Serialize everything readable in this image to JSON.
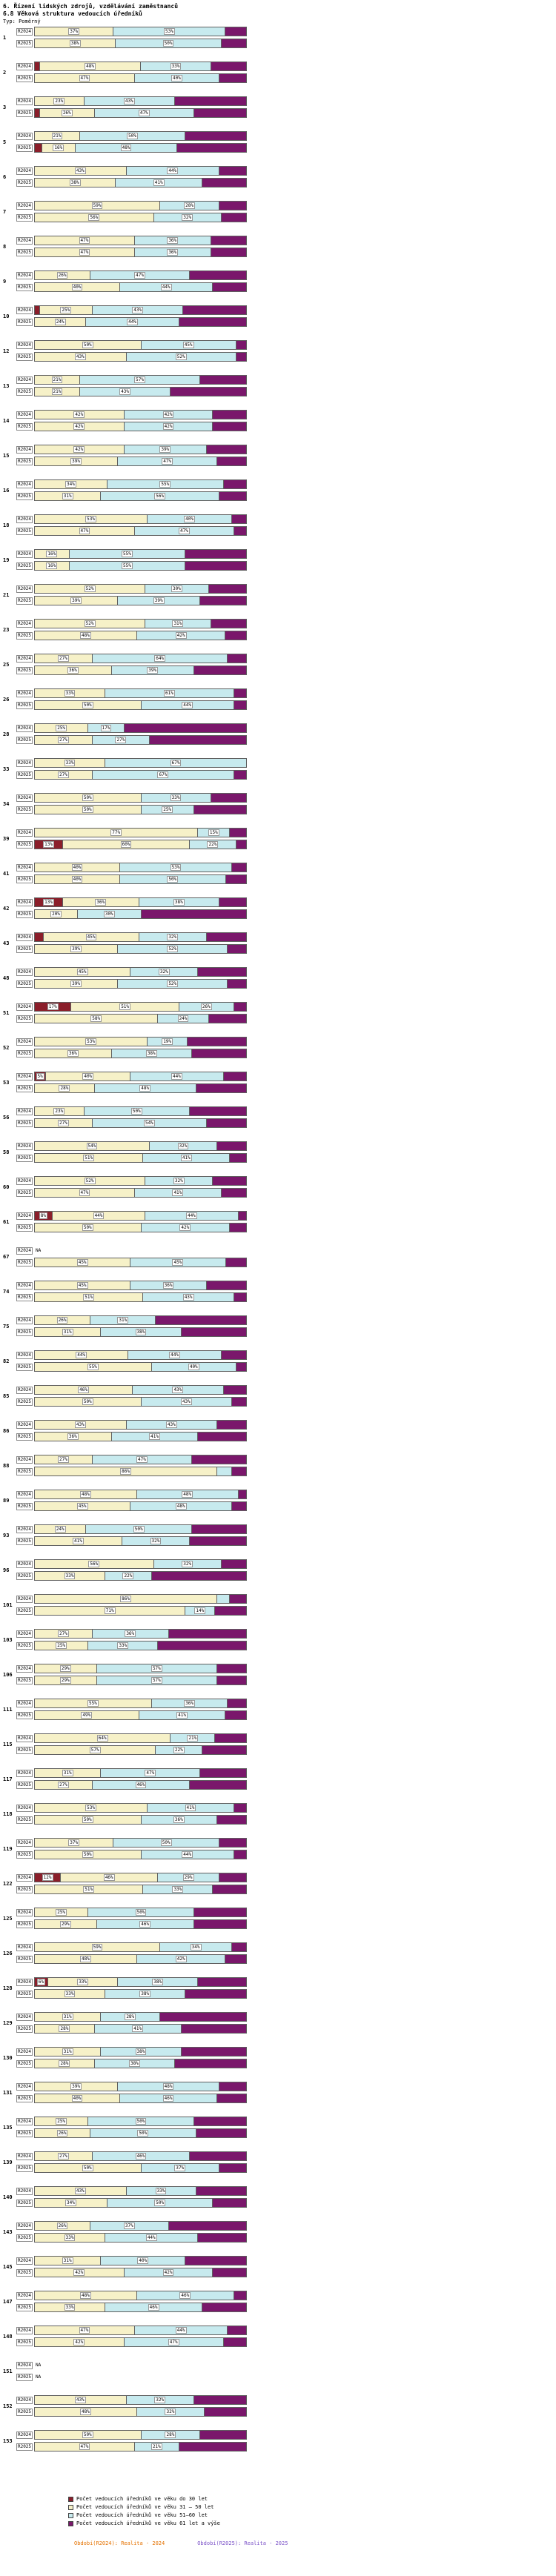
{
  "title": "6. Řízení lidských zdrojů, vzdělávání zaměstnanců",
  "subtitle": "6.8 Věková struktura vedoucích úředníků",
  "type_label": "Typ: Poměrný",
  "row_labels": {
    "r2024": "R2024",
    "r2025": "R2025",
    "na": "NA"
  },
  "colors": {
    "age_under30": "#8B1E2A",
    "age_31_50": "#F6F1C8",
    "age_51_60": "#C7EAEE",
    "age_61_plus": "#7A176B",
    "period_2024_text": "#E57200",
    "period_2025_text": "#7B52C8"
  },
  "legend": {
    "items": [
      {
        "label": "Počet vedoucích úředníků ve věku do 30 let",
        "color_key": "age_under30"
      },
      {
        "label": "Počet vedoucích úředníků ve věku 31 – 50 let",
        "color_key": "age_31_50"
      },
      {
        "label": "Počet vedoucích úředníků ve věku 51–60 let",
        "color_key": "age_51_60"
      },
      {
        "label": "Počet vedoucích úředníků ve věku 61 let a výše",
        "color_key": "age_61_plus"
      }
    ]
  },
  "periods": {
    "p2024": "Období(R2024): Realita - 2024",
    "p2025": "Období(R2025): Realita - 2025"
  },
  "chart_data": {
    "type": "bar",
    "stacked": true,
    "orientation": "horizontal",
    "unit": "%",
    "xlim": [
      0,
      100
    ],
    "series_keys": [
      "do 30 let",
      "31 – 50 let",
      "51–60 let",
      "61 let a výše"
    ],
    "groups": [
      {
        "id": 1,
        "R2024": [
          0,
          37,
          53,
          10
        ],
        "R2025": [
          0,
          38,
          50,
          12
        ]
      },
      {
        "id": 2,
        "R2024": [
          2,
          48,
          33,
          17
        ],
        "R2025": [
          0,
          47,
          40,
          13
        ]
      },
      {
        "id": 3,
        "R2024": [
          0,
          23,
          43,
          34
        ],
        "R2025": [
          2,
          26,
          47,
          25
        ]
      },
      {
        "id": 5,
        "R2024": [
          0,
          21,
          50,
          29
        ],
        "R2025": [
          3,
          16,
          48,
          33
        ]
      },
      {
        "id": 6,
        "R2024": [
          0,
          43,
          44,
          13
        ],
        "R2025": [
          0,
          38,
          41,
          21
        ]
      },
      {
        "id": 7,
        "R2024": [
          0,
          59,
          28,
          13
        ],
        "R2025": [
          0,
          56,
          32,
          12
        ]
      },
      {
        "id": 8,
        "R2024": [
          0,
          47,
          36,
          17
        ],
        "R2025": [
          0,
          47,
          36,
          17
        ]
      },
      {
        "id": 9,
        "R2024": [
          0,
          26,
          47,
          27
        ],
        "R2025": [
          0,
          40,
          44,
          16
        ]
      },
      {
        "id": 10,
        "R2024": [
          2,
          25,
          43,
          30
        ],
        "R2025": [
          0,
          24,
          44,
          32
        ]
      },
      {
        "id": 12,
        "R2024": [
          0,
          50,
          45,
          5
        ],
        "R2025": [
          0,
          43,
          52,
          5
        ]
      },
      {
        "id": 13,
        "R2024": [
          0,
          21,
          57,
          22
        ],
        "R2025": [
          0,
          21,
          43,
          36
        ]
      },
      {
        "id": 14,
        "R2024": [
          0,
          42,
          42,
          16
        ],
        "R2025": [
          0,
          42,
          42,
          16
        ]
      },
      {
        "id": 15,
        "R2024": [
          0,
          42,
          39,
          19
        ],
        "R2025": [
          0,
          39,
          47,
          14
        ]
      },
      {
        "id": 16,
        "R2024": [
          0,
          34,
          55,
          11
        ],
        "R2025": [
          0,
          31,
          56,
          13
        ]
      },
      {
        "id": 18,
        "R2024": [
          0,
          53,
          40,
          7
        ],
        "R2025": [
          0,
          47,
          47,
          6
        ]
      },
      {
        "id": 19,
        "R2024": [
          0,
          16,
          55,
          29
        ],
        "R2025": [
          0,
          16,
          55,
          29
        ]
      },
      {
        "id": 21,
        "R2024": [
          0,
          52,
          30,
          18
        ],
        "R2025": [
          0,
          39,
          39,
          22
        ]
      },
      {
        "id": 23,
        "R2024": [
          0,
          52,
          31,
          17
        ],
        "R2025": [
          0,
          48,
          42,
          10
        ]
      },
      {
        "id": 25,
        "R2024": [
          0,
          27,
          64,
          9
        ],
        "R2025": [
          0,
          36,
          39,
          25
        ]
      },
      {
        "id": 26,
        "R2024": [
          0,
          33,
          61,
          6
        ],
        "R2025": [
          0,
          50,
          44,
          6
        ]
      },
      {
        "id": 28,
        "R2024": [
          0,
          25,
          17,
          58
        ],
        "R2025": [
          0,
          27,
          27,
          46
        ]
      },
      {
        "id": 33,
        "R2024": [
          0,
          33,
          67,
          0
        ],
        "R2025": [
          0,
          27,
          67,
          6
        ]
      },
      {
        "id": 34,
        "R2024": [
          0,
          50,
          33,
          17
        ],
        "R2025": [
          0,
          50,
          25,
          25
        ]
      },
      {
        "id": 39,
        "R2024": [
          0,
          77,
          15,
          8
        ],
        "R2025": [
          13,
          60,
          22,
          5
        ]
      },
      {
        "id": 41,
        "R2024": [
          0,
          40,
          53,
          7
        ],
        "R2025": [
          0,
          40,
          50,
          10
        ]
      },
      {
        "id": 42,
        "R2024": [
          13,
          36,
          38,
          13
        ],
        "R2025": [
          0,
          20,
          30,
          50
        ]
      },
      {
        "id": 43,
        "R2024": [
          4,
          45,
          32,
          19
        ],
        "R2025": [
          0,
          39,
          52,
          9
        ]
      },
      {
        "id": 48,
        "R2024": [
          0,
          45,
          32,
          23
        ],
        "R2025": [
          0,
          39,
          52,
          9
        ]
      },
      {
        "id": 51,
        "R2024": [
          17,
          51,
          26,
          6
        ],
        "R2025": [
          0,
          58,
          24,
          18
        ]
      },
      {
        "id": 52,
        "R2024": [
          0,
          53,
          19,
          28
        ],
        "R2025": [
          0,
          36,
          38,
          26
        ]
      },
      {
        "id": 53,
        "R2024": [
          5,
          40,
          44,
          11
        ],
        "R2025": [
          0,
          28,
          48,
          24
        ]
      },
      {
        "id": 56,
        "R2024": [
          0,
          23,
          50,
          27
        ],
        "R2025": [
          0,
          27,
          54,
          19
        ]
      },
      {
        "id": 58,
        "R2024": [
          0,
          54,
          32,
          14
        ],
        "R2025": [
          0,
          51,
          41,
          8
        ]
      },
      {
        "id": 60,
        "R2024": [
          0,
          52,
          32,
          16
        ],
        "R2025": [
          0,
          47,
          41,
          12
        ]
      },
      {
        "id": 61,
        "R2024": [
          8,
          44,
          44,
          4
        ],
        "R2025": [
          0,
          50,
          42,
          8
        ]
      },
      {
        "id": 67,
        "R2024": null,
        "R2025": [
          0,
          45,
          45,
          10
        ]
      },
      {
        "id": 74,
        "R2024": [
          0,
          45,
          36,
          19
        ],
        "R2025": [
          0,
          51,
          43,
          6
        ]
      },
      {
        "id": 75,
        "R2024": [
          0,
          26,
          31,
          43
        ],
        "R2025": [
          0,
          31,
          38,
          31
        ]
      },
      {
        "id": 82,
        "R2024": [
          0,
          44,
          44,
          12
        ],
        "R2025": [
          0,
          55,
          40,
          5
        ]
      },
      {
        "id": 85,
        "R2024": [
          0,
          46,
          43,
          11
        ],
        "R2025": [
          0,
          50,
          43,
          7
        ]
      },
      {
        "id": 86,
        "R2024": [
          0,
          43,
          43,
          14
        ],
        "R2025": [
          0,
          36,
          41,
          23
        ]
      },
      {
        "id": 88,
        "R2024": [
          0,
          27,
          47,
          26
        ],
        "R2025": [
          0,
          86,
          7,
          7
        ]
      },
      {
        "id": 89,
        "R2024": [
          0,
          48,
          48,
          4
        ],
        "R2025": [
          0,
          45,
          48,
          7
        ]
      },
      {
        "id": 93,
        "R2024": [
          0,
          24,
          50,
          26
        ],
        "R2025": [
          0,
          41,
          32,
          27
        ]
      },
      {
        "id": 96,
        "R2024": [
          0,
          56,
          32,
          12
        ],
        "R2025": [
          0,
          33,
          22,
          45
        ]
      },
      {
        "id": 101,
        "R2024": [
          0,
          86,
          6,
          8
        ],
        "R2025": [
          0,
          71,
          14,
          15
        ]
      },
      {
        "id": 103,
        "R2024": [
          0,
          27,
          36,
          37
        ],
        "R2025": [
          0,
          25,
          33,
          42
        ]
      },
      {
        "id": 106,
        "R2024": [
          0,
          29,
          57,
          14
        ],
        "R2025": [
          0,
          29,
          57,
          14
        ]
      },
      {
        "id": 111,
        "R2024": [
          0,
          55,
          36,
          9
        ],
        "R2025": [
          0,
          49,
          41,
          10
        ]
      },
      {
        "id": 115,
        "R2024": [
          0,
          64,
          21,
          15
        ],
        "R2025": [
          0,
          57,
          22,
          21
        ]
      },
      {
        "id": 117,
        "R2024": [
          0,
          31,
          47,
          22
        ],
        "R2025": [
          0,
          27,
          46,
          27
        ]
      },
      {
        "id": 118,
        "R2024": [
          0,
          53,
          41,
          6
        ],
        "R2025": [
          0,
          50,
          36,
          14
        ]
      },
      {
        "id": 119,
        "R2024": [
          0,
          37,
          50,
          13
        ],
        "R2025": [
          0,
          50,
          44,
          6
        ]
      },
      {
        "id": 122,
        "R2024": [
          12,
          46,
          29,
          13
        ],
        "R2025": [
          0,
          51,
          33,
          16
        ]
      },
      {
        "id": 125,
        "R2024": [
          0,
          25,
          50,
          25
        ],
        "R2025": [
          0,
          29,
          46,
          25
        ]
      },
      {
        "id": 126,
        "R2024": [
          0,
          59,
          34,
          7
        ],
        "R2025": [
          0,
          48,
          42,
          10
        ]
      },
      {
        "id": 128,
        "R2024": [
          6,
          33,
          38,
          23
        ],
        "R2025": [
          0,
          33,
          38,
          29
        ]
      },
      {
        "id": 129,
        "R2024": [
          0,
          31,
          28,
          41
        ],
        "R2025": [
          0,
          28,
          41,
          31
        ]
      },
      {
        "id": 130,
        "R2024": [
          0,
          31,
          38,
          31
        ],
        "R2025": [
          0,
          28,
          38,
          34
        ]
      },
      {
        "id": 131,
        "R2024": [
          0,
          39,
          48,
          13
        ],
        "R2025": [
          0,
          40,
          46,
          14
        ]
      },
      {
        "id": 135,
        "R2024": [
          0,
          25,
          50,
          25
        ],
        "R2025": [
          0,
          26,
          50,
          24
        ]
      },
      {
        "id": 139,
        "R2024": [
          0,
          27,
          46,
          27
        ],
        "R2025": [
          0,
          50,
          37,
          13
        ]
      },
      {
        "id": 140,
        "R2024": [
          0,
          43,
          33,
          24
        ],
        "R2025": [
          0,
          34,
          50,
          16
        ]
      },
      {
        "id": 143,
        "R2024": [
          0,
          26,
          37,
          37
        ],
        "R2025": [
          0,
          33,
          44,
          23
        ]
      },
      {
        "id": 145,
        "R2024": [
          0,
          31,
          40,
          29
        ],
        "R2025": [
          0,
          42,
          42,
          16
        ]
      },
      {
        "id": 147,
        "R2024": [
          0,
          48,
          46,
          6
        ],
        "R2025": [
          0,
          33,
          46,
          21
        ]
      },
      {
        "id": 148,
        "R2024": [
          0,
          47,
          44,
          9
        ],
        "R2025": [
          0,
          42,
          47,
          11
        ]
      },
      {
        "id": 151,
        "R2024": null,
        "R2025": null
      },
      {
        "id": 152,
        "R2024": [
          0,
          43,
          32,
          25
        ],
        "R2025": [
          0,
          48,
          32,
          20
        ]
      },
      {
        "id": 153,
        "R2024": [
          0,
          50,
          28,
          22
        ],
        "R2025": [
          0,
          47,
          21,
          32
        ]
      }
    ]
  }
}
